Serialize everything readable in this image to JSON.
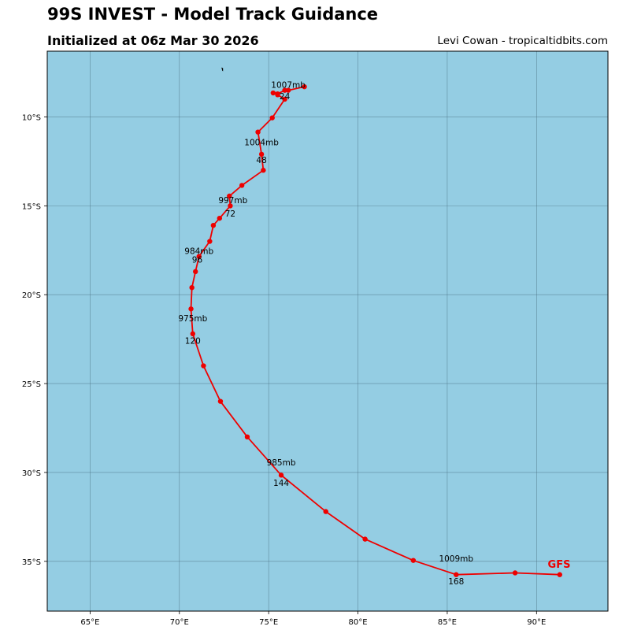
{
  "header": {
    "title": "99S INVEST - Model Track Guidance",
    "subtitle": "Initialized at 06z Mar 30 2026",
    "credit": "Levi Cowan - tropicaltidbits.com"
  },
  "colors": {
    "ocean": "#94cde3",
    "track": "#ee0000",
    "grid": "#4a6f80"
  },
  "chart_data": {
    "type": "map-track",
    "lon_range": [
      62.6,
      94.0
    ],
    "lat_range": [
      -37.8,
      -6.3
    ],
    "lon_ticks": [
      {
        "value": 65,
        "label": "65°E"
      },
      {
        "value": 70,
        "label": "70°E"
      },
      {
        "value": 75,
        "label": "75°E"
      },
      {
        "value": 80,
        "label": "80°E"
      },
      {
        "value": 85,
        "label": "85°E"
      },
      {
        "value": 90,
        "label": "90°E"
      }
    ],
    "lat_ticks": [
      {
        "value": -10,
        "label": "10°S"
      },
      {
        "value": -15,
        "label": "15°S"
      },
      {
        "value": -20,
        "label": "20°S"
      },
      {
        "value": -25,
        "label": "25°S"
      },
      {
        "value": -30,
        "label": "30°S"
      },
      {
        "value": -35,
        "label": "35°S"
      }
    ],
    "model": "GFS",
    "track": [
      {
        "lon": 77.0,
        "lat": -8.3
      },
      {
        "lon": 76.1,
        "lat": -8.5
      },
      {
        "lon": 75.9,
        "lat": -8.5
      },
      {
        "lon": 75.5,
        "lat": -8.7
      },
      {
        "lon": 75.25,
        "lat": -8.65
      },
      {
        "lon": 75.5,
        "lat": -8.75
      },
      {
        "lon": 75.9,
        "lat": -9.0
      },
      {
        "lon": 75.2,
        "lat": -10.05
      },
      {
        "lon": 74.4,
        "lat": -10.85
      },
      {
        "lon": 74.6,
        "lat": -12.1
      },
      {
        "lon": 74.7,
        "lat": -13.0
      },
      {
        "lon": 73.5,
        "lat": -13.85
      },
      {
        "lon": 72.8,
        "lat": -14.45
      },
      {
        "lon": 72.85,
        "lat": -15.0
      },
      {
        "lon": 72.25,
        "lat": -15.7
      },
      {
        "lon": 71.9,
        "lat": -16.1
      },
      {
        "lon": 71.7,
        "lat": -17.0
      },
      {
        "lon": 71.1,
        "lat": -17.85
      },
      {
        "lon": 70.9,
        "lat": -18.7
      },
      {
        "lon": 70.7,
        "lat": -19.6
      },
      {
        "lon": 70.65,
        "lat": -20.8
      },
      {
        "lon": 70.75,
        "lat": -22.2
      },
      {
        "lon": 71.35,
        "lat": -24.0
      },
      {
        "lon": 72.3,
        "lat": -26.0
      },
      {
        "lon": 73.8,
        "lat": -28.0
      },
      {
        "lon": 75.7,
        "lat": -30.15
      },
      {
        "lon": 78.2,
        "lat": -32.2
      },
      {
        "lon": 80.4,
        "lat": -33.75
      },
      {
        "lon": 83.1,
        "lat": -34.95
      },
      {
        "lon": 85.5,
        "lat": -35.75
      },
      {
        "lon": 88.8,
        "lat": -35.65
      },
      {
        "lon": 91.3,
        "lat": -35.75
      }
    ],
    "pressure_labels": [
      {
        "lon": 76.1,
        "lat": -8.35,
        "text": "1007mb"
      },
      {
        "lon": 74.6,
        "lat": -11.6,
        "text": "1004mb"
      },
      {
        "lon": 73.0,
        "lat": -14.85,
        "text": "997mb"
      },
      {
        "lon": 71.1,
        "lat": -17.7,
        "text": "984mb"
      },
      {
        "lon": 70.75,
        "lat": -21.5,
        "text": "975mb"
      },
      {
        "lon": 75.7,
        "lat": -29.6,
        "text": "985mb"
      },
      {
        "lon": 85.5,
        "lat": -35.0,
        "text": "1009mb"
      }
    ],
    "hour_labels": [
      {
        "lon": 75.9,
        "lat": -9.0,
        "text": "24"
      },
      {
        "lon": 74.6,
        "lat": -12.6,
        "text": "48"
      },
      {
        "lon": 72.85,
        "lat": -15.6,
        "text": "72"
      },
      {
        "lon": 71.0,
        "lat": -18.2,
        "text": "96"
      },
      {
        "lon": 70.75,
        "lat": -22.75,
        "text": "120"
      },
      {
        "lon": 75.7,
        "lat": -30.75,
        "text": "144"
      },
      {
        "lon": 85.5,
        "lat": -36.3,
        "text": "168"
      }
    ],
    "land_features": [
      {
        "name": "island",
        "lon": 72.4,
        "lat": -7.3
      }
    ]
  }
}
